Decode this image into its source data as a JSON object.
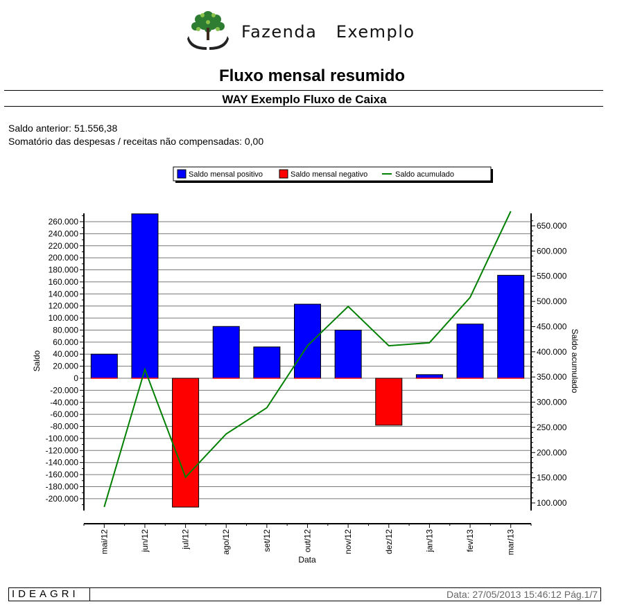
{
  "header": {
    "brand_name": "Fazenda   Exemplo",
    "logo_icon": "tree-hands-logo-icon"
  },
  "report": {
    "title": "Fluxo mensal resumido",
    "subtitle": "WAY Exemplo Fluxo de Caixa",
    "previous_balance": "Saldo anterior: 51.556,38",
    "uncompensated_sum": "Somatório das despesas / receitas não compensadas: 0,00"
  },
  "chart_data": {
    "type": "bar",
    "categories": [
      "mai/12",
      "jun/12",
      "jul/12",
      "ago/12",
      "set/12",
      "out/12",
      "nov/12",
      "dez/12",
      "jan/13",
      "fev/13",
      "mar/13"
    ],
    "series": [
      {
        "name": "Saldo mensal positivo",
        "type": "bar",
        "color": "#0000ff",
        "values": [
          40000,
          273000,
          0,
          86000,
          52000,
          123000,
          80000,
          0,
          6000,
          90000,
          171000
        ]
      },
      {
        "name": "Saldo mensal negativo",
        "type": "bar",
        "color": "#ff0000",
        "values": [
          0,
          0,
          -214000,
          0,
          0,
          0,
          0,
          -78000,
          0,
          0,
          0
        ]
      },
      {
        "name": "Saldo acumulado",
        "type": "line",
        "color": "#008000",
        "axis": "right",
        "values": [
          92000,
          365000,
          151000,
          237000,
          289000,
          412000,
          490000,
          412000,
          418000,
          508000,
          679000
        ]
      }
    ],
    "xlabel": "Data",
    "ylabel": "Saldo",
    "y2label": "Saldo acumulado",
    "ylim": [
      -214000,
      273000
    ],
    "y2lim": [
      92000,
      679000
    ],
    "yticks": [
      "260.000",
      "240.000",
      "220.000",
      "200.000",
      "180.000",
      "160.000",
      "140.000",
      "120.000",
      "100.000",
      "80.000",
      "60.000",
      "40.000",
      "20.000",
      "0",
      "-20.000",
      "-40.000",
      "-60.000",
      "-80.000",
      "-100.000",
      "-120.000",
      "-140.000",
      "-160.000",
      "-180.000",
      "-200.000"
    ],
    "ytick_values": [
      260000,
      240000,
      220000,
      200000,
      180000,
      160000,
      140000,
      120000,
      100000,
      80000,
      60000,
      40000,
      20000,
      0,
      -20000,
      -40000,
      -60000,
      -80000,
      -100000,
      -120000,
      -140000,
      -160000,
      -180000,
      -200000
    ],
    "y2ticks": [
      "650.000",
      "600.000",
      "550.000",
      "500.000",
      "450.000",
      "400.000",
      "350.000",
      "300.000",
      "250.000",
      "200.000",
      "150.000",
      "100.000"
    ],
    "y2tick_values": [
      650000,
      600000,
      550000,
      500000,
      450000,
      400000,
      350000,
      300000,
      250000,
      200000,
      150000,
      100000
    ],
    "grid": true,
    "legend_position": "top-center"
  },
  "footer": {
    "brand": "IDEAGRI",
    "date_page": "Data: 27/05/2013 15:46:12 Pág.1/7"
  }
}
